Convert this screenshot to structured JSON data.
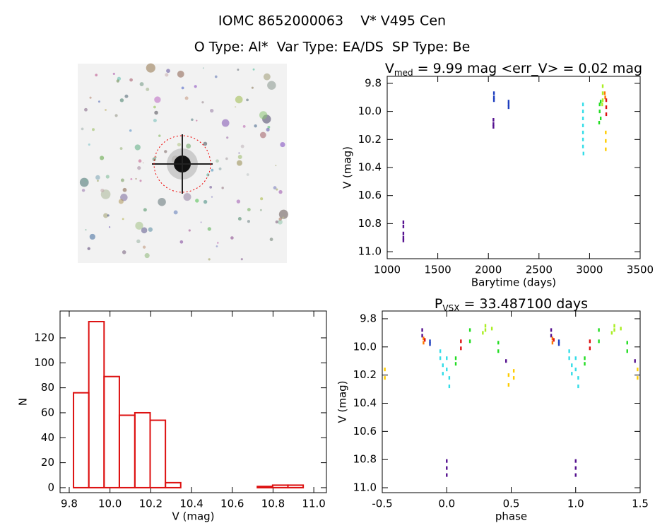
{
  "figure": {
    "title": "IOMC 8652000063    V* V495 Cen",
    "subtitle": "O Type: Al*  Var Type: EA/DS  SP Type: Be"
  },
  "chart_data": [
    {
      "type": "scatter",
      "title": [
        "V",
        "med",
        " = 9.99 mag <err_V> = 0.02 mag"
      ],
      "xlabel": "Barytime (days)",
      "ylabel": "V (mag)",
      "xlim": [
        1000,
        3500
      ],
      "xticks": [
        1000,
        1500,
        2000,
        2500,
        3000,
        3500
      ],
      "ylim": [
        11.05,
        9.75
      ],
      "yticks": [
        {
          "value": 9.8,
          "label": "9.8"
        },
        {
          "value": 10,
          "label": "10.0"
        },
        10.2,
        10.4,
        10.6,
        10.8,
        {
          "value": 11,
          "label": "11.0"
        }
      ],
      "series": [
        {
          "color": "#55118f",
          "x": [
            1160,
            1160,
            1160,
            1160,
            1160,
            2050,
            2050,
            2050
          ],
          "values": [
            10.79,
            10.82,
            10.87,
            10.9,
            10.92,
            10.06,
            10.09,
            10.11
          ]
        },
        {
          "color": "#1f3fbf",
          "x": [
            2055,
            2055,
            2055,
            2200,
            2200,
            2200
          ],
          "values": [
            9.87,
            9.9,
            9.92,
            9.93,
            9.95,
            9.97
          ]
        },
        {
          "color": "#33dde8",
          "x": [
            2935,
            2935,
            2935,
            2935,
            2935,
            2935,
            2935,
            2940
          ],
          "values": [
            9.95,
            10,
            10.05,
            10.1,
            10.15,
            10.2,
            10.25,
            10.3
          ]
        },
        {
          "color": "#22dd22",
          "x": [
            3095,
            3100,
            3100,
            3110,
            3110
          ],
          "values": [
            10.08,
            10,
            9.95,
            9.93,
            10.05
          ]
        },
        {
          "color": "#aaee22",
          "x": [
            3130,
            3130,
            3130,
            3125
          ],
          "values": [
            9.82,
            9.87,
            9.92,
            9.95
          ]
        },
        {
          "color": "#ff7700",
          "x": [
            3150,
            3155
          ],
          "values": [
            9.87,
            9.9
          ]
        },
        {
          "color": "#ffcc00",
          "x": [
            3160,
            3160,
            3160
          ],
          "values": [
            10.15,
            10.21,
            10.27
          ]
        },
        {
          "color": "#dd1111",
          "x": [
            3165,
            3165,
            3165
          ],
          "values": [
            9.92,
            9.97,
            10.02
          ]
        }
      ]
    },
    {
      "type": "histogram",
      "xlabel": "V (mag)",
      "ylabel": "N",
      "color": "#dd1111",
      "bins": [
        9.821,
        9.896,
        9.971,
        10.046,
        10.122,
        10.197,
        10.272,
        10.347,
        10.422,
        10.497,
        10.573,
        10.648,
        10.723,
        10.798,
        10.873,
        10.948
      ],
      "values": [
        76,
        133,
        89,
        58,
        60,
        54,
        4,
        0,
        0,
        0,
        0,
        0,
        1,
        2,
        2
      ],
      "xlim": [
        9.755,
        11.062
      ],
      "xticks": [
        9.8,
        {
          "value": 10,
          "label": "10.0"
        },
        10.2,
        10.4,
        10.6,
        10.8,
        {
          "value": 11,
          "label": "11.0"
        }
      ],
      "ylim": [
        -4,
        141.5
      ],
      "yticks": [
        0,
        20,
        40,
        60,
        80,
        100,
        120
      ]
    },
    {
      "type": "scatter",
      "title": [
        "P",
        "VSX",
        " = 33.487100 days"
      ],
      "xlabel": "phase",
      "ylabel": "V (mag)",
      "xlim": [
        -0.5,
        1.5
      ],
      "xticks": [
        -0.5,
        {
          "value": 0,
          "label": "0.0"
        },
        0.5,
        {
          "value": 1,
          "label": "1.0"
        },
        1.5
      ],
      "ylim": [
        11.035,
        9.745
      ],
      "yticks": [
        {
          "value": 9.8,
          "label": "9.8"
        },
        {
          "value": 10,
          "label": "10.0"
        },
        10.2,
        10.4,
        10.6,
        10.8,
        {
          "value": 11,
          "label": "11.0"
        }
      ],
      "series": [
        {
          "color": "#55118f",
          "x": [
            -0.19,
            -0.19,
            0,
            0,
            0,
            0.46,
            0.81,
            0.81,
            1,
            1,
            1,
            1.46
          ],
          "values": [
            9.88,
            9.92,
            10.81,
            10.86,
            10.91,
            10.1,
            9.88,
            9.92,
            10.81,
            10.86,
            10.91,
            10.1
          ]
        },
        {
          "color": "#ff7700",
          "x": [
            -0.18,
            -0.18,
            0.82,
            0.82
          ],
          "values": [
            9.94,
            9.97,
            9.94,
            9.97
          ]
        },
        {
          "color": "#dd1111",
          "x": [
            -0.17,
            0.11,
            0.11,
            0.83,
            1.11,
            1.11
          ],
          "values": [
            9.95,
            9.96,
            10.01,
            9.95,
            9.96,
            10.01
          ]
        },
        {
          "color": "#1f3fbf",
          "x": [
            -0.13,
            -0.13,
            0.87,
            0.87
          ],
          "values": [
            9.96,
            9.98,
            9.96,
            9.98
          ]
        },
        {
          "color": "#33dde8",
          "x": [
            -0.05,
            -0.05,
            -0.03,
            -0.03,
            0,
            0,
            0.02,
            0.02,
            0.95,
            0.95,
            0.97,
            0.97,
            1,
            1,
            1.02,
            1.02
          ],
          "values": [
            10.03,
            10.08,
            10.13,
            10.19,
            10.08,
            10.16,
            10.22,
            10.28,
            10.03,
            10.08,
            10.13,
            10.19,
            10.08,
            10.16,
            10.22,
            10.28
          ]
        },
        {
          "color": "#22dd22",
          "x": [
            0.07,
            0.07,
            0.18,
            0.18,
            0.4,
            0.4,
            1.07,
            1.07,
            1.18,
            1.18,
            1.4,
            1.4
          ],
          "values": [
            10.08,
            10.12,
            9.88,
            9.96,
            9.97,
            10.03,
            10.08,
            10.12,
            9.88,
            9.96,
            9.97,
            10.03
          ]
        },
        {
          "color": "#aaee22",
          "x": [
            0.28,
            0.3,
            0.3,
            0.35,
            1.28,
            1.3,
            1.3,
            1.35
          ],
          "values": [
            9.9,
            9.85,
            9.88,
            9.87,
            9.9,
            9.85,
            9.88,
            9.87
          ]
        },
        {
          "color": "#ffcc00",
          "x": [
            -0.48,
            -0.48,
            0.48,
            0.48,
            0.52,
            0.52,
            1.48,
            1.48
          ],
          "values": [
            10.16,
            10.22,
            10.2,
            10.27,
            10.17,
            10.22,
            10.16,
            10.22
          ]
        }
      ]
    }
  ]
}
